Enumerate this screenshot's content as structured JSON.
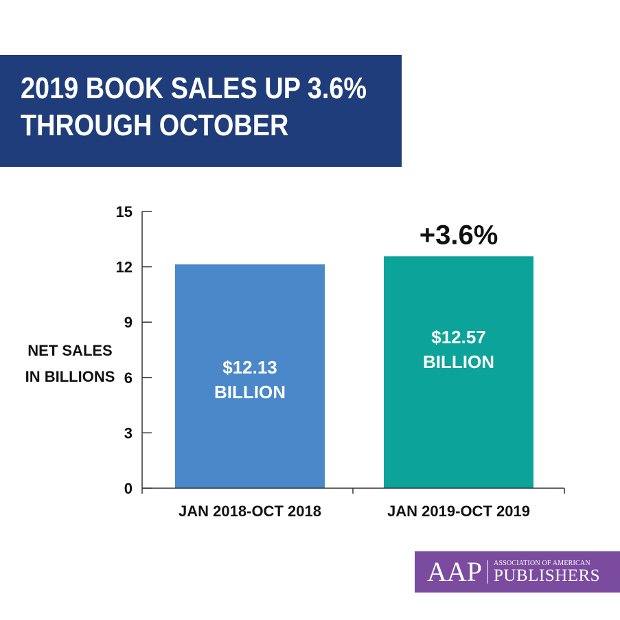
{
  "header": {
    "title_line1": "2019 BOOK SALES UP 3.6%",
    "title_line2": "THROUGH OCTOBER"
  },
  "chart_data": {
    "type": "bar",
    "title": "2019 BOOK SALES UP 3.6% THROUGH OCTOBER",
    "ylabel_lines": [
      "NET SALES",
      "IN BILLIONS"
    ],
    "xlabel": "",
    "ylim": [
      0,
      15
    ],
    "yticks": [
      0,
      3,
      6,
      9,
      12,
      15
    ],
    "categories": [
      "JAN 2018-OCT 2018",
      "JAN 2019-OCT 2019"
    ],
    "values": [
      12.13,
      12.57
    ],
    "bar_colors": [
      "#4a88c9",
      "#0ba39a"
    ],
    "data_labels": [
      [
        "$12.13",
        "BILLION"
      ],
      [
        "$12.57",
        "BILLION"
      ]
    ],
    "annotation": "+3.6%",
    "grid": false
  },
  "logo": {
    "mark": "AAP",
    "line_small": "ASSOCIATION OF AMERICAN",
    "line_big": "PUBLISHERS",
    "background": "#7b4ba0"
  }
}
